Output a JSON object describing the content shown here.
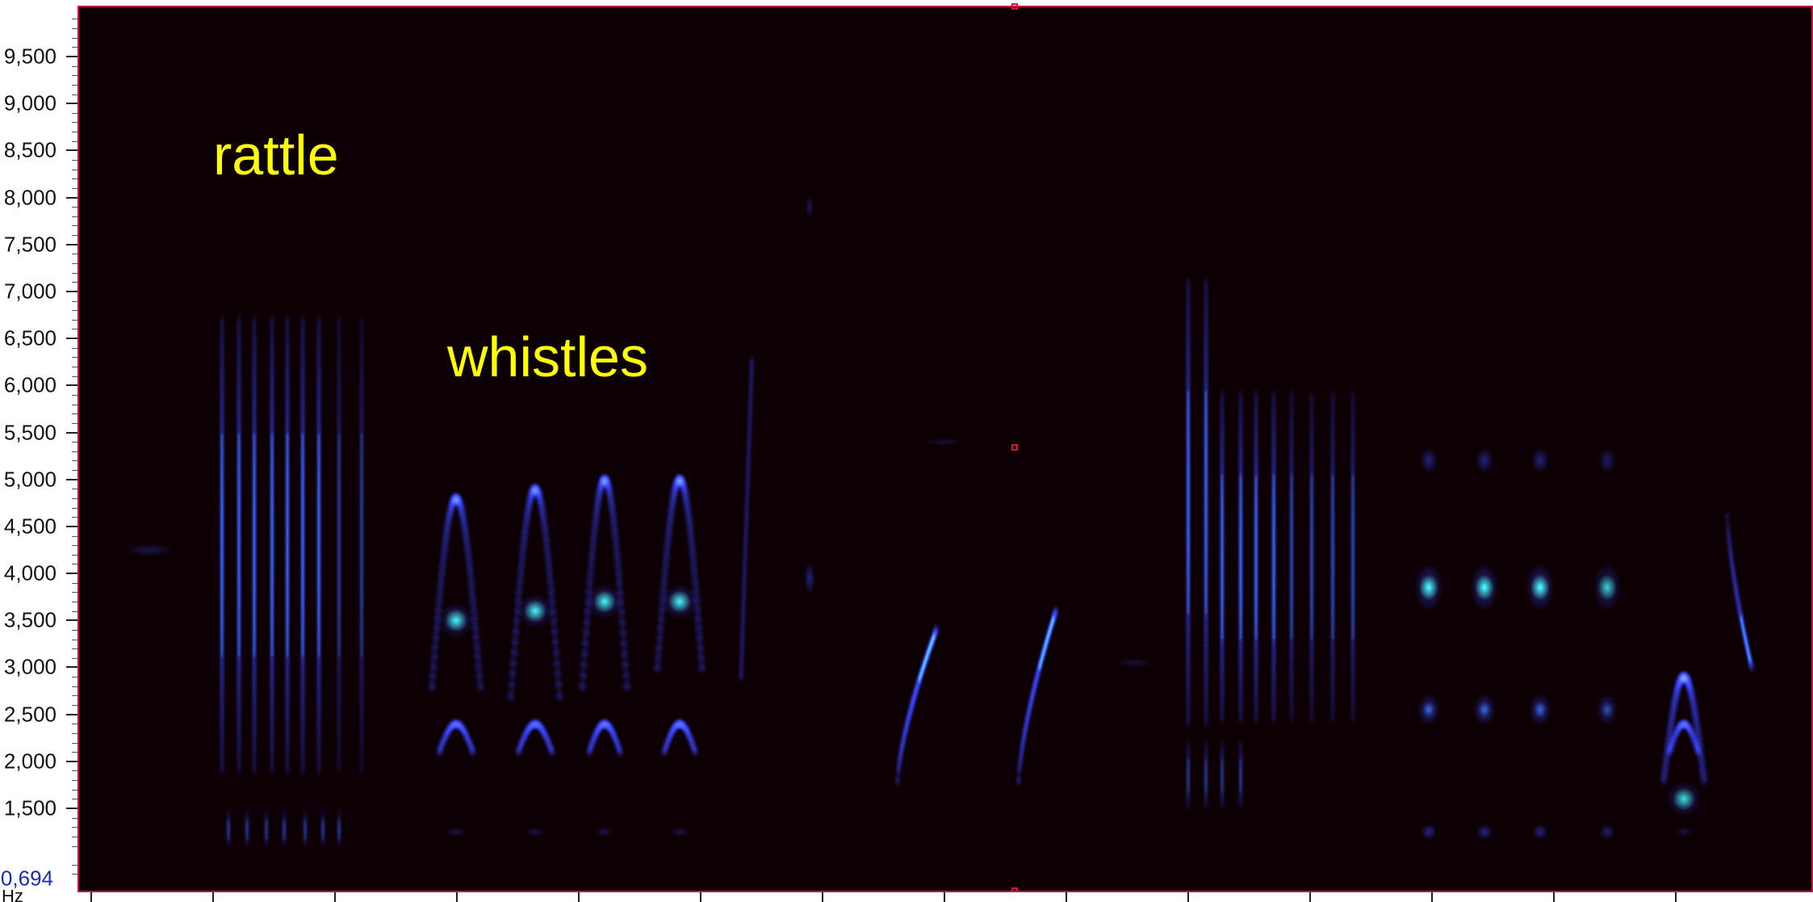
{
  "frequency_axis": {
    "unit": "Hz",
    "labels": [
      "9,500",
      "9,000",
      "8,500",
      "8,000",
      "7,500",
      "7,000",
      "6,500",
      "6,000",
      "5,500",
      "5,000",
      "4,500",
      "4,000",
      "3,500",
      "3,000",
      "2,500",
      "2,000",
      "1,500"
    ],
    "values": [
      9500,
      9000,
      8500,
      8000,
      7500,
      7000,
      6500,
      6000,
      5500,
      5000,
      4500,
      4000,
      3500,
      3000,
      2500,
      2000,
      1500
    ],
    "min_label": "0,694",
    "min_value": 694,
    "max_value": 10000
  },
  "annotations": {
    "rattle": "rattle",
    "whistles": "whistles"
  },
  "colors": {
    "background": "#0d0004",
    "frame": "#c8104a",
    "annotation_text": "#ffff00",
    "energy_low": "#1a2bd0",
    "energy_high": "#22ff88"
  },
  "spectrogram": {
    "description_shapes": "vertical rattle pulses, arched whistles, chirps, repeated notes",
    "time_ticks": 14
  }
}
